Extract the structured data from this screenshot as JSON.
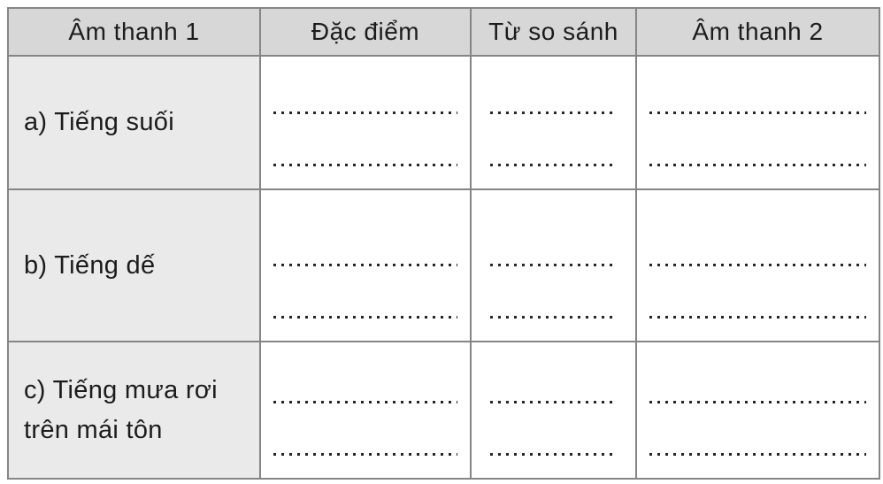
{
  "table": {
    "headers": [
      "Âm thanh 1",
      "Đặc điểm",
      "Từ so sánh",
      "Âm thanh 2"
    ],
    "rows": [
      {
        "sound1": "a) Tiếng suối"
      },
      {
        "sound1": "b) Tiếng dế"
      },
      {
        "sound1": "c) Tiếng mưa rơi trên mái tôn"
      }
    ]
  },
  "colors": {
    "header_bg": "#d7d7d7",
    "label_col_bg": "#eaeaea",
    "border": "#858585",
    "text": "#1c1c1c",
    "dots": "#262626",
    "page_bg": "#ffffff"
  }
}
